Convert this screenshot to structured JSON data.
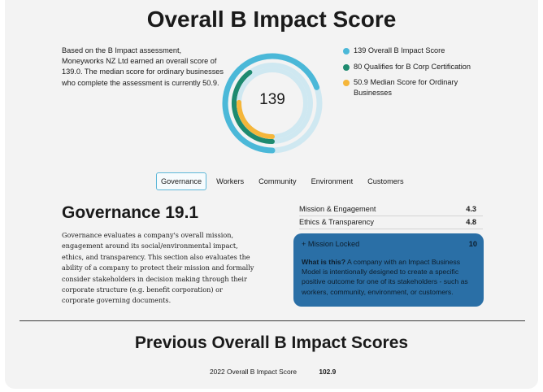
{
  "page": {
    "title": "Overall B Impact Score",
    "intro": "Based on the B Impact assessment, Moneyworks NZ Ltd earned an overall score of 139.0. The median score for ordinary businesses who complete the assessment is currently 50.9."
  },
  "score_chart": {
    "center_value": "139",
    "max_scale": 200,
    "rings": [
      {
        "name": "overall",
        "value": 139,
        "color": "#4bb8d8",
        "track": "#cfe8f1"
      },
      {
        "name": "qualifies",
        "value": 80,
        "color": "#1e8a6f",
        "track": "#cfe8f1"
      },
      {
        "name": "median",
        "value": 50.9,
        "color": "#f5b63a",
        "track": "#cfe8f1"
      }
    ],
    "legend": [
      {
        "label": "139 Overall B Impact Score",
        "color": "#4bb8d8"
      },
      {
        "label": "80 Qualifies for B Corp Certification",
        "color": "#1e8a6f"
      },
      {
        "label": "50.9 Median Score for Ordinary Businesses",
        "color": "#f5b63a"
      }
    ]
  },
  "tabs": [
    "Governance",
    "Workers",
    "Community",
    "Environment",
    "Customers"
  ],
  "active_tab": "Governance",
  "governance": {
    "title": "Governance 19.1",
    "description": "Governance evaluates a company's overall mission, engagement around its social/environmental impact, ethics, and transparency. This section also evaluates the ability of a company to protect their mission and formally consider stakeholders in decision making through their corporate structure (e.g. benefit corporation) or corporate governing documents.",
    "metrics": [
      {
        "label": "Mission & Engagement",
        "value": "4.3"
      },
      {
        "label": "Ethics & Transparency",
        "value": "4.8"
      }
    ],
    "mission_locked": {
      "label": "+ Mission Locked",
      "value": "10",
      "question": "What is this?",
      "answer": "A company with an Impact Business Model is intentionally designed to create a specific positive outcome for one of its stakeholders - such as workers, community, environment, or customers."
    }
  },
  "previous": {
    "title": "Previous Overall B Impact Scores",
    "rows": [
      {
        "label": "2022 Overall B Impact Score",
        "value": "102.9"
      }
    ]
  }
}
